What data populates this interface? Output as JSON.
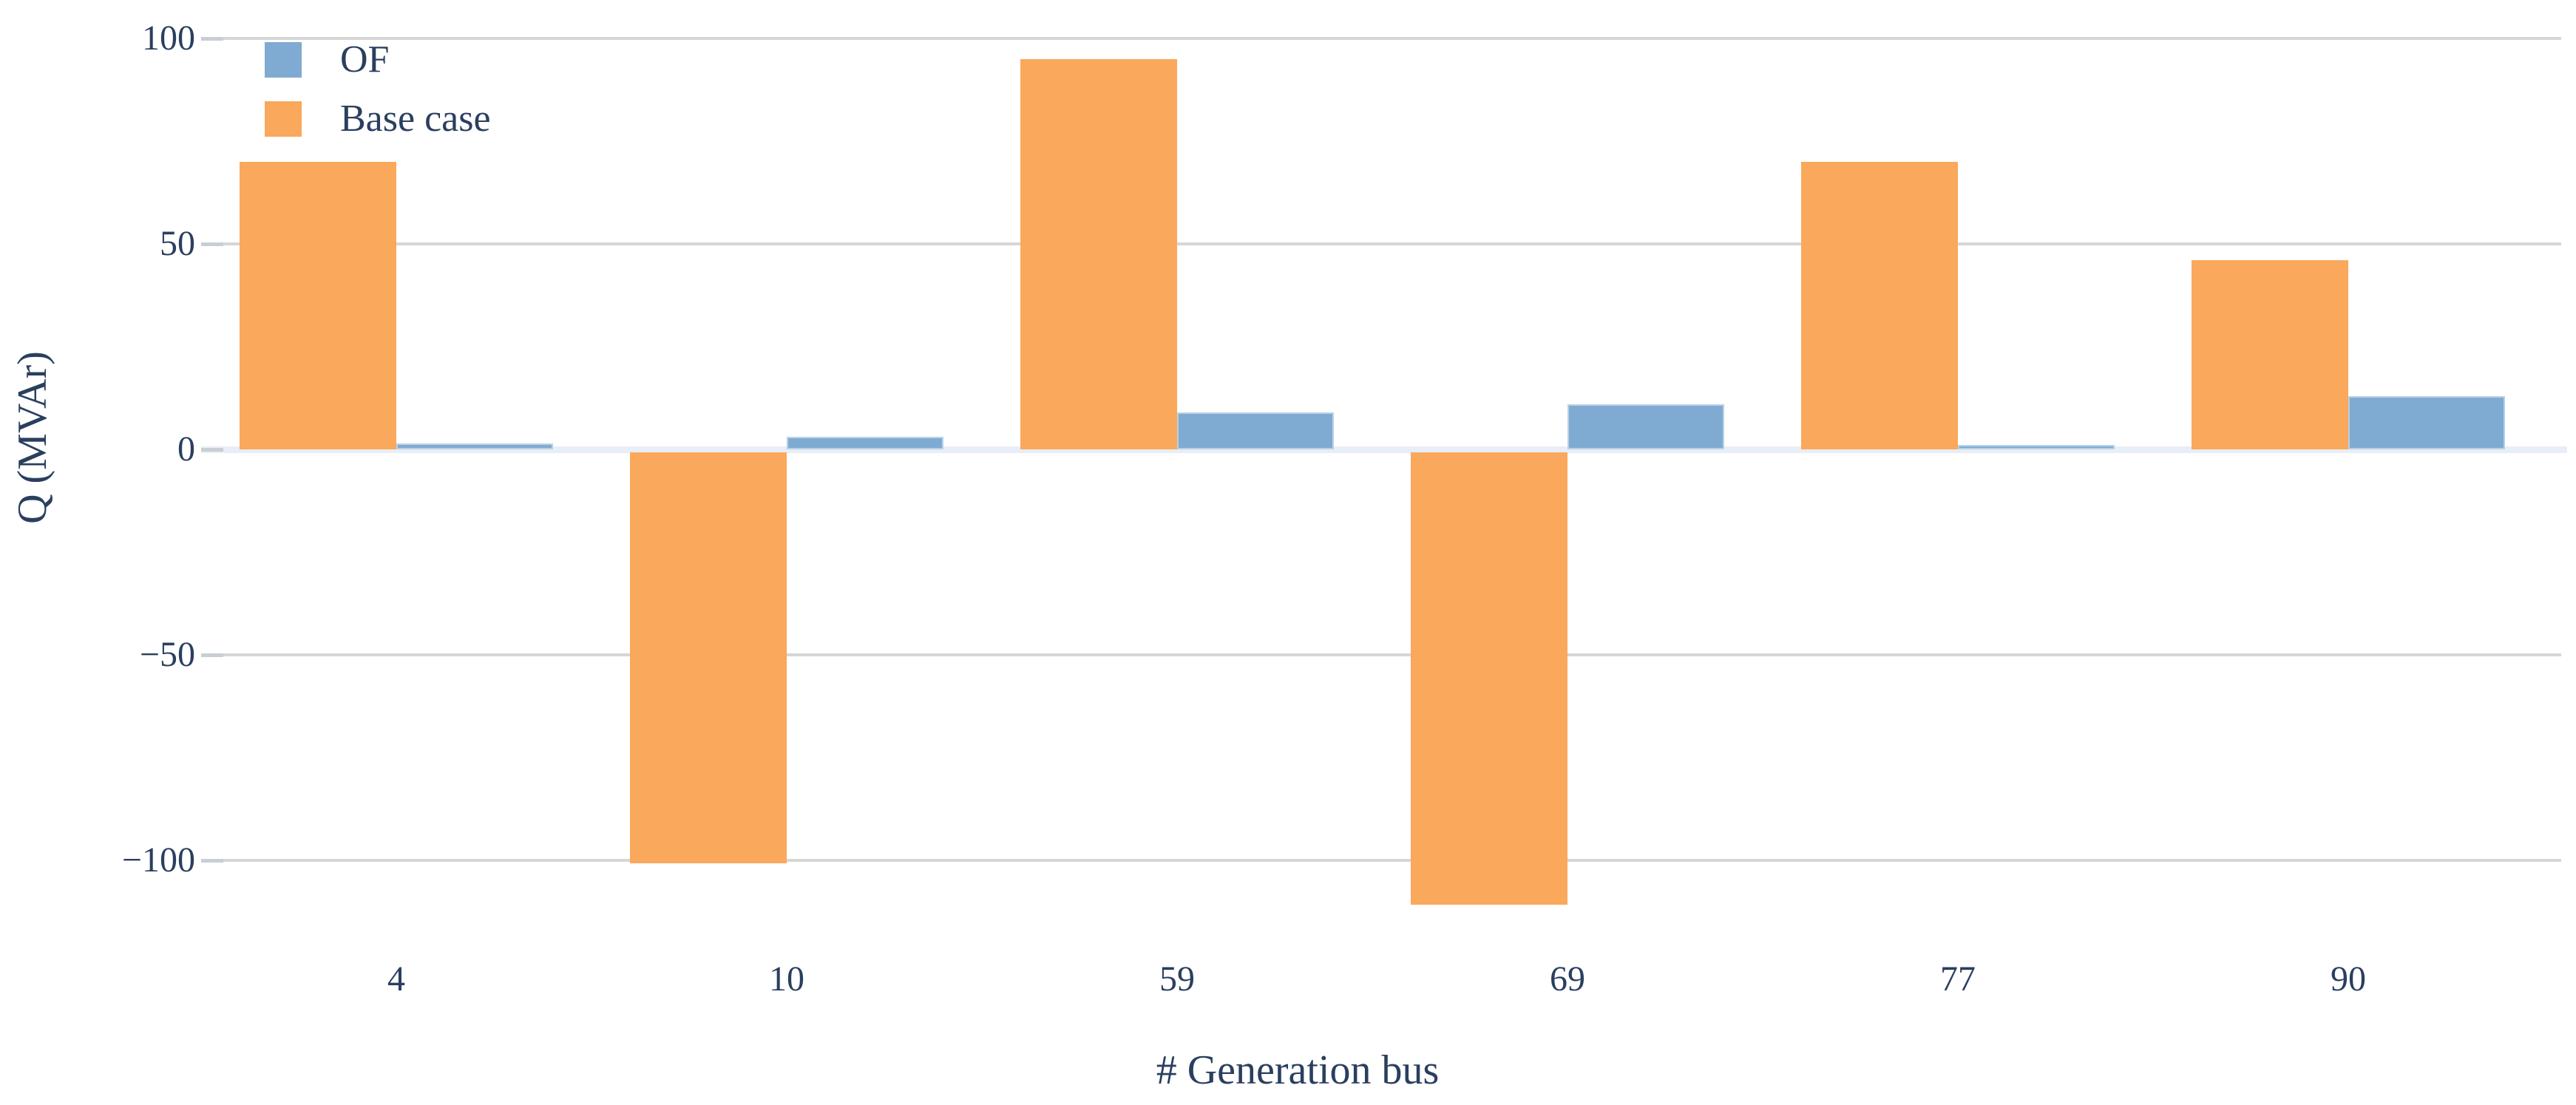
{
  "chart_data": {
    "type": "bar",
    "title": "",
    "xlabel": "# Generation bus",
    "ylabel": "Q (MVAr)",
    "categories": [
      "4",
      "10",
      "59",
      "69",
      "77",
      "90"
    ],
    "series": [
      {
        "name": "OF",
        "color": "#7FABD2",
        "values": [
          1.4,
          3,
          9,
          11,
          1,
          13
        ]
      },
      {
        "name": "Base case",
        "color": "#FAA85C",
        "values": [
          70,
          -100,
          95,
          -110,
          70,
          46
        ]
      }
    ],
    "bar_visual_order": [
      "Base case",
      "OF"
    ],
    "ylim": [
      -125,
      105
    ],
    "yticks": [
      100,
      50,
      0,
      -50,
      -100
    ],
    "grid": true,
    "legend_position": "top-left"
  },
  "colors": {
    "text": "#2A3F5F",
    "grid": "#D6D6D6",
    "zero_band": "#E8EEF7",
    "tick_mark": "#C9CDD4",
    "background": "#FFFFFF",
    "of_blue": "#7FABD2",
    "base_orange": "#FAA85C"
  }
}
